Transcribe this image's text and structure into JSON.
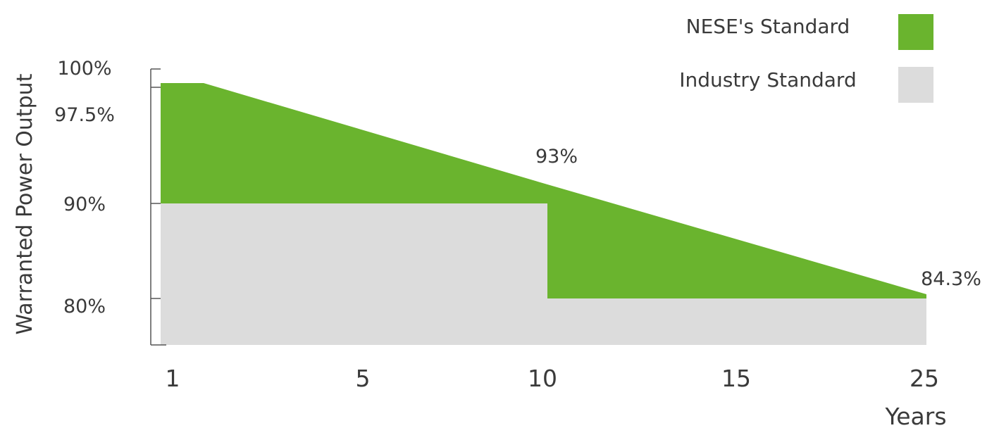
{
  "chart_data": {
    "type": "area",
    "ylabel": "Warranted Power Output",
    "xlabel": "Years",
    "x_ticks": [
      "1",
      "5",
      "10",
      "15",
      "25"
    ],
    "y_ticks": [
      "100%",
      "97.5%",
      "90%",
      "80%"
    ],
    "series": [
      {
        "name": "NESE's Standard",
        "color": "#6ab42e",
        "points": [
          {
            "x": 1,
            "y": 97.5
          },
          {
            "x": 2,
            "y": 97.5
          },
          {
            "x": 10,
            "y": 93
          },
          {
            "x": 25,
            "y": 84.3
          }
        ]
      },
      {
        "name": "Industry Standard",
        "color": "#dcdcdc",
        "points": [
          {
            "x": 1,
            "y": 90
          },
          {
            "x": 10,
            "y": 90
          },
          {
            "x": 10,
            "y": 80
          },
          {
            "x": 25,
            "y": 80
          }
        ]
      }
    ],
    "annotations": [
      "93%",
      "84.3%"
    ],
    "legend": "top-right"
  }
}
